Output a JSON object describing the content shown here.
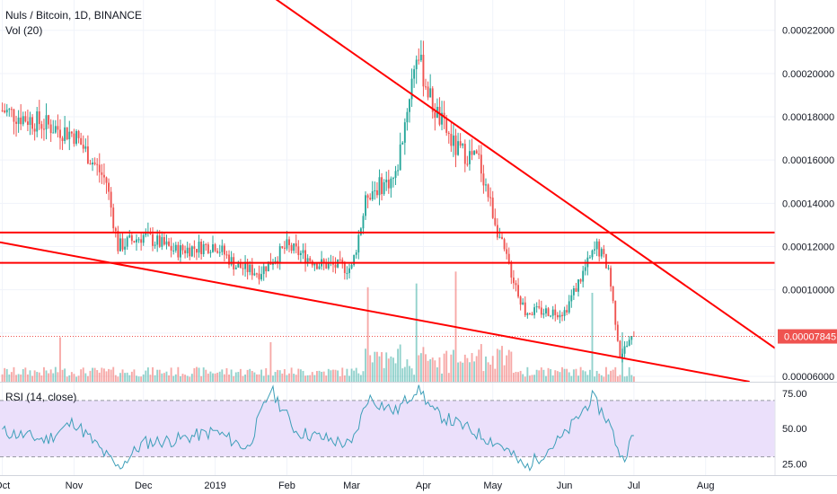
{
  "header": {
    "symbol_line": "Nuls / Bitcoin, 1D, BINANCE",
    "volume_label": "Vol (20)"
  },
  "rsi_panel": {
    "label": "RSI (14, close)",
    "upper_band": 70,
    "lower_band": 30,
    "ticks": [
      "75.00",
      "50.00",
      "25.00"
    ]
  },
  "price_axis": {
    "tick_labels": [
      "0.00022000",
      "0.00020000",
      "0.00018000",
      "0.00016000",
      "0.00014000",
      "0.00012000",
      "0.00010000",
      "0.00008000",
      "0.00006000"
    ],
    "last_price_label": "0.00007845"
  },
  "time_axis": {
    "labels": [
      "Oct",
      "Nov",
      "Dec",
      "2019",
      "Feb",
      "Mar",
      "Apr",
      "May",
      "Jun",
      "Jul",
      "Aug"
    ]
  },
  "colors": {
    "up": "#26a69a",
    "down": "#ef5350",
    "trendline": "#ff0000",
    "rsi_line": "#3e9fb9",
    "rsi_band": "#ebe0fb",
    "last_price": "#ef5350"
  },
  "chart_data": [
    {
      "type": "candlestick",
      "title": "Nuls / Bitcoin, 1D, BINANCE",
      "y_unit": "BTC",
      "ylim": [
        5.75e-05,
        0.000234
      ],
      "x_range": [
        "2018-09-30",
        "2019-08-31"
      ],
      "last_price": 7.845e-05,
      "price_series": [
        {
          "date": "2018-10-01",
          "close": 0.000183
        },
        {
          "date": "2018-10-15",
          "close": 0.000178
        },
        {
          "date": "2018-11-01",
          "close": 0.000172
        },
        {
          "date": "2018-11-15",
          "close": 0.00015
        },
        {
          "date": "2018-11-20",
          "close": 0.00012
        },
        {
          "date": "2018-12-01",
          "close": 0.000125
        },
        {
          "date": "2018-12-15",
          "close": 0.000118
        },
        {
          "date": "2019-01-01",
          "close": 0.000121
        },
        {
          "date": "2019-01-10",
          "close": 0.000111
        },
        {
          "date": "2019-01-20",
          "close": 0.000108
        },
        {
          "date": "2019-02-01",
          "close": 0.00012
        },
        {
          "date": "2019-02-15",
          "close": 0.000112
        },
        {
          "date": "2019-03-01",
          "close": 0.00011
        },
        {
          "date": "2019-03-08",
          "close": 0.000145
        },
        {
          "date": "2019-03-20",
          "close": 0.000152
        },
        {
          "date": "2019-03-29",
          "close": 0.00021
        },
        {
          "date": "2019-04-05",
          "close": 0.000185
        },
        {
          "date": "2019-04-15",
          "close": 0.000165
        },
        {
          "date": "2019-04-25",
          "close": 0.00016
        },
        {
          "date": "2019-05-05",
          "close": 0.00012
        },
        {
          "date": "2019-05-15",
          "close": 9e-05
        },
        {
          "date": "2019-06-01",
          "close": 9e-05
        },
        {
          "date": "2019-06-10",
          "close": 0.00011
        },
        {
          "date": "2019-06-15",
          "close": 0.00012
        },
        {
          "date": "2019-06-20",
          "close": 0.00011
        },
        {
          "date": "2019-06-25",
          "close": 7e-05
        },
        {
          "date": "2019-07-01",
          "close": 7.845e-05
        }
      ],
      "trendlines": [
        {
          "name": "upper descending",
          "points": [
            {
              "date": "2018-12-24",
              "price": 0.00026
            },
            {
              "date": "2019-08-31",
              "price": 7.3e-05
            }
          ]
        },
        {
          "name": "lower descending",
          "points": [
            {
              "date": "2018-09-30",
              "price": 0.000122
            },
            {
              "date": "2019-08-20",
              "price": 5.75e-05
            }
          ]
        },
        {
          "name": "horizontal resistance",
          "points": [
            {
              "date": "2018-09-30",
              "price": 0.0001265
            },
            {
              "date": "2019-08-31",
              "price": 0.0001265
            }
          ]
        },
        {
          "name": "horizontal support",
          "points": [
            {
              "date": "2018-09-30",
              "price": 0.0001125
            },
            {
              "date": "2019-08-31",
              "price": 0.0001125
            }
          ]
        }
      ],
      "volume_spikes": [
        {
          "date": "2018-10-26",
          "relative": 0.45
        },
        {
          "date": "2019-01-25",
          "relative": 0.4
        },
        {
          "date": "2019-03-08",
          "relative": 0.75
        },
        {
          "date": "2019-03-29",
          "relative": 0.95
        },
        {
          "date": "2019-04-15",
          "relative": 1.0
        },
        {
          "date": "2019-06-13",
          "relative": 0.9
        },
        {
          "date": "2019-06-26",
          "relative": 0.5
        }
      ]
    },
    {
      "type": "line",
      "title": "RSI (14, close)",
      "ylim": [
        17,
        82
      ],
      "bands": [
        30,
        70
      ],
      "points": [
        {
          "date": "2018-10-01",
          "value": 48
        },
        {
          "date": "2018-10-20",
          "value": 42
        },
        {
          "date": "2018-11-01",
          "value": 55
        },
        {
          "date": "2018-11-20",
          "value": 22
        },
        {
          "date": "2018-12-01",
          "value": 40
        },
        {
          "date": "2018-12-15",
          "value": 42
        },
        {
          "date": "2019-01-01",
          "value": 48
        },
        {
          "date": "2019-01-15",
          "value": 36
        },
        {
          "date": "2019-01-25",
          "value": 78
        },
        {
          "date": "2019-02-05",
          "value": 48
        },
        {
          "date": "2019-02-20",
          "value": 42
        },
        {
          "date": "2019-03-01",
          "value": 38
        },
        {
          "date": "2019-03-08",
          "value": 72
        },
        {
          "date": "2019-03-20",
          "value": 62
        },
        {
          "date": "2019-03-30",
          "value": 80
        },
        {
          "date": "2019-04-05",
          "value": 62
        },
        {
          "date": "2019-04-20",
          "value": 50
        },
        {
          "date": "2019-05-05",
          "value": 38
        },
        {
          "date": "2019-05-15",
          "value": 22
        },
        {
          "date": "2019-06-01",
          "value": 45
        },
        {
          "date": "2019-06-13",
          "value": 72
        },
        {
          "date": "2019-06-20",
          "value": 55
        },
        {
          "date": "2019-06-26",
          "value": 28
        },
        {
          "date": "2019-07-01",
          "value": 45
        }
      ]
    }
  ]
}
